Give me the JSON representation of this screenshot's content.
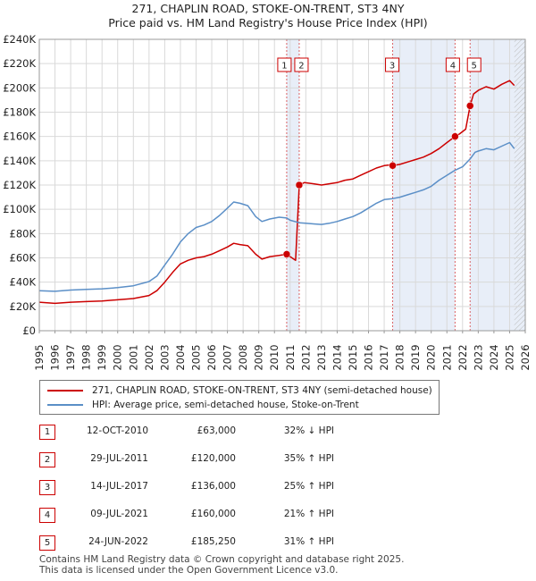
{
  "chart_data": {
    "type": "line",
    "title": "271, CHAPLIN ROAD, STOKE-ON-TRENT, ST3 4NY",
    "subtitle": "Price paid vs. HM Land Registry's House Price Index (HPI)",
    "xlim": [
      1995,
      2026
    ],
    "ylim": [
      0,
      240000
    ],
    "x_ticks": [
      "1995",
      "1996",
      "1997",
      "1998",
      "1999",
      "2000",
      "2001",
      "2002",
      "2003",
      "2004",
      "2005",
      "2006",
      "2007",
      "2008",
      "2009",
      "2010",
      "2011",
      "2012",
      "2013",
      "2014",
      "2015",
      "2016",
      "2017",
      "2018",
      "2019",
      "2020",
      "2021",
      "2022",
      "2023",
      "2024",
      "2025",
      "2026"
    ],
    "y_ticks": [
      {
        "value": 0,
        "label": "£0"
      },
      {
        "value": 20000,
        "label": "£20K"
      },
      {
        "value": 40000,
        "label": "£40K"
      },
      {
        "value": 60000,
        "label": "£60K"
      },
      {
        "value": 80000,
        "label": "£80K"
      },
      {
        "value": 100000,
        "label": "£100K"
      },
      {
        "value": 120000,
        "label": "£120K"
      },
      {
        "value": 140000,
        "label": "£140K"
      },
      {
        "value": 160000,
        "label": "£160K"
      },
      {
        "value": 180000,
        "label": "£180K"
      },
      {
        "value": 200000,
        "label": "£200K"
      },
      {
        "value": 220000,
        "label": "£220K"
      },
      {
        "value": 240000,
        "label": "£240K"
      }
    ],
    "series": [
      {
        "name": "271, CHAPLIN ROAD, STOKE-ON-TRENT, ST3 4NY (semi-detached house)",
        "color": "#cc0000",
        "points": [
          [
            1995.0,
            23500
          ],
          [
            1996.0,
            22500
          ],
          [
            1997.0,
            23500
          ],
          [
            1998.0,
            24000
          ],
          [
            1999.0,
            24500
          ],
          [
            2000.0,
            25500
          ],
          [
            2001.0,
            26500
          ],
          [
            2002.0,
            29000
          ],
          [
            2002.5,
            33000
          ],
          [
            2003.0,
            40000
          ],
          [
            2003.5,
            48000
          ],
          [
            2004.0,
            55000
          ],
          [
            2004.5,
            58000
          ],
          [
            2005.0,
            60000
          ],
          [
            2005.5,
            61000
          ],
          [
            2006.0,
            63000
          ],
          [
            2006.5,
            66000
          ],
          [
            2007.0,
            69000
          ],
          [
            2007.4,
            72000
          ],
          [
            2007.8,
            71000
          ],
          [
            2008.3,
            70000
          ],
          [
            2008.8,
            63000
          ],
          [
            2009.2,
            59000
          ],
          [
            2009.7,
            61000
          ],
          [
            2010.3,
            62000
          ],
          [
            2010.78,
            63000
          ],
          [
            2011.0,
            61000
          ],
          [
            2011.35,
            58000
          ],
          [
            2011.58,
            120000
          ],
          [
            2011.9,
            122000
          ],
          [
            2012.5,
            121000
          ],
          [
            2013.0,
            120000
          ],
          [
            2013.5,
            121000
          ],
          [
            2014.0,
            122000
          ],
          [
            2014.5,
            124000
          ],
          [
            2015.0,
            125000
          ],
          [
            2015.5,
            128000
          ],
          [
            2016.0,
            131000
          ],
          [
            2016.5,
            134000
          ],
          [
            2017.0,
            136000
          ],
          [
            2017.3,
            136500
          ],
          [
            2017.54,
            136000
          ],
          [
            2018.0,
            137000
          ],
          [
            2018.5,
            139000
          ],
          [
            2019.0,
            141000
          ],
          [
            2019.5,
            143000
          ],
          [
            2020.0,
            146000
          ],
          [
            2020.5,
            150000
          ],
          [
            2021.0,
            155000
          ],
          [
            2021.52,
            160000
          ],
          [
            2021.8,
            162000
          ],
          [
            2022.2,
            166000
          ],
          [
            2022.48,
            185250
          ],
          [
            2022.7,
            195000
          ],
          [
            2023.0,
            198000
          ],
          [
            2023.5,
            201000
          ],
          [
            2024.0,
            199000
          ],
          [
            2024.5,
            203000
          ],
          [
            2025.0,
            206000
          ],
          [
            2025.3,
            202000
          ]
        ]
      },
      {
        "name": "HPI: Average price, semi-detached house, Stoke-on-Trent",
        "color": "#5b8fc7",
        "points": [
          [
            1995.0,
            33000
          ],
          [
            1996.0,
            32500
          ],
          [
            1997.0,
            33500
          ],
          [
            1998.0,
            34000
          ],
          [
            1999.0,
            34500
          ],
          [
            2000.0,
            35500
          ],
          [
            2001.0,
            37000
          ],
          [
            2002.0,
            40500
          ],
          [
            2002.5,
            45000
          ],
          [
            2003.0,
            54000
          ],
          [
            2003.5,
            63000
          ],
          [
            2004.0,
            73000
          ],
          [
            2004.5,
            80000
          ],
          [
            2005.0,
            85000
          ],
          [
            2005.5,
            87000
          ],
          [
            2006.0,
            90000
          ],
          [
            2006.5,
            95000
          ],
          [
            2007.0,
            101000
          ],
          [
            2007.4,
            106000
          ],
          [
            2007.8,
            105000
          ],
          [
            2008.3,
            103000
          ],
          [
            2008.8,
            94000
          ],
          [
            2009.2,
            90000
          ],
          [
            2009.7,
            92000
          ],
          [
            2010.3,
            93500
          ],
          [
            2010.78,
            92800
          ],
          [
            2011.0,
            91000
          ],
          [
            2011.58,
            88900
          ],
          [
            2012.0,
            88500
          ],
          [
            2012.5,
            88000
          ],
          [
            2013.0,
            87500
          ],
          [
            2013.5,
            88500
          ],
          [
            2014.0,
            90000
          ],
          [
            2014.5,
            92000
          ],
          [
            2015.0,
            94000
          ],
          [
            2015.5,
            97000
          ],
          [
            2016.0,
            101000
          ],
          [
            2016.5,
            105000
          ],
          [
            2017.0,
            108000
          ],
          [
            2017.54,
            108800
          ],
          [
            2018.0,
            110000
          ],
          [
            2018.5,
            112000
          ],
          [
            2019.0,
            114000
          ],
          [
            2019.5,
            116000
          ],
          [
            2020.0,
            119000
          ],
          [
            2020.5,
            124000
          ],
          [
            2021.0,
            128000
          ],
          [
            2021.52,
            132200
          ],
          [
            2022.0,
            135000
          ],
          [
            2022.48,
            141400
          ],
          [
            2022.8,
            147000
          ],
          [
            2023.0,
            148000
          ],
          [
            2023.5,
            150000
          ],
          [
            2024.0,
            149000
          ],
          [
            2024.5,
            152000
          ],
          [
            2025.0,
            155000
          ],
          [
            2025.3,
            150000
          ]
        ]
      }
    ],
    "sales": [
      {
        "label": "1",
        "x": 2010.78,
        "y": 63000
      },
      {
        "label": "2",
        "x": 2011.58,
        "y": 120000
      },
      {
        "label": "3",
        "x": 2017.54,
        "y": 136000
      },
      {
        "label": "4",
        "x": 2021.52,
        "y": 160000
      },
      {
        "label": "5",
        "x": 2022.48,
        "y": 185250
      }
    ],
    "shaded_ranges": [
      [
        2010.78,
        2011.58
      ],
      [
        2017.54,
        2021.52
      ],
      [
        2022.48,
        2026
      ]
    ],
    "hatch_from": 2025.3
  },
  "legend": {
    "property_label": "271, CHAPLIN ROAD, STOKE-ON-TRENT, ST3 4NY (semi-detached house)",
    "hpi_label": "HPI: Average price, semi-detached house, Stoke-on-Trent",
    "property_color": "#cc0000",
    "hpi_color": "#5b8fc7"
  },
  "sales_table": [
    {
      "num": "1",
      "date": "12-OCT-2010",
      "price": "£63,000",
      "hpi": "32% ↓ HPI"
    },
    {
      "num": "2",
      "date": "29-JUL-2011",
      "price": "£120,000",
      "hpi": "35% ↑ HPI"
    },
    {
      "num": "3",
      "date": "14-JUL-2017",
      "price": "£136,000",
      "hpi": "25% ↑ HPI"
    },
    {
      "num": "4",
      "date": "09-JUL-2021",
      "price": "£160,000",
      "hpi": "21% ↑ HPI"
    },
    {
      "num": "5",
      "date": "24-JUN-2022",
      "price": "£185,250",
      "hpi": "31% ↑ HPI"
    }
  ],
  "footer": {
    "line1": "Contains HM Land Registry data © Crown copyright and database right 2025.",
    "line2": "This data is licensed under the Open Government Licence v3.0."
  }
}
